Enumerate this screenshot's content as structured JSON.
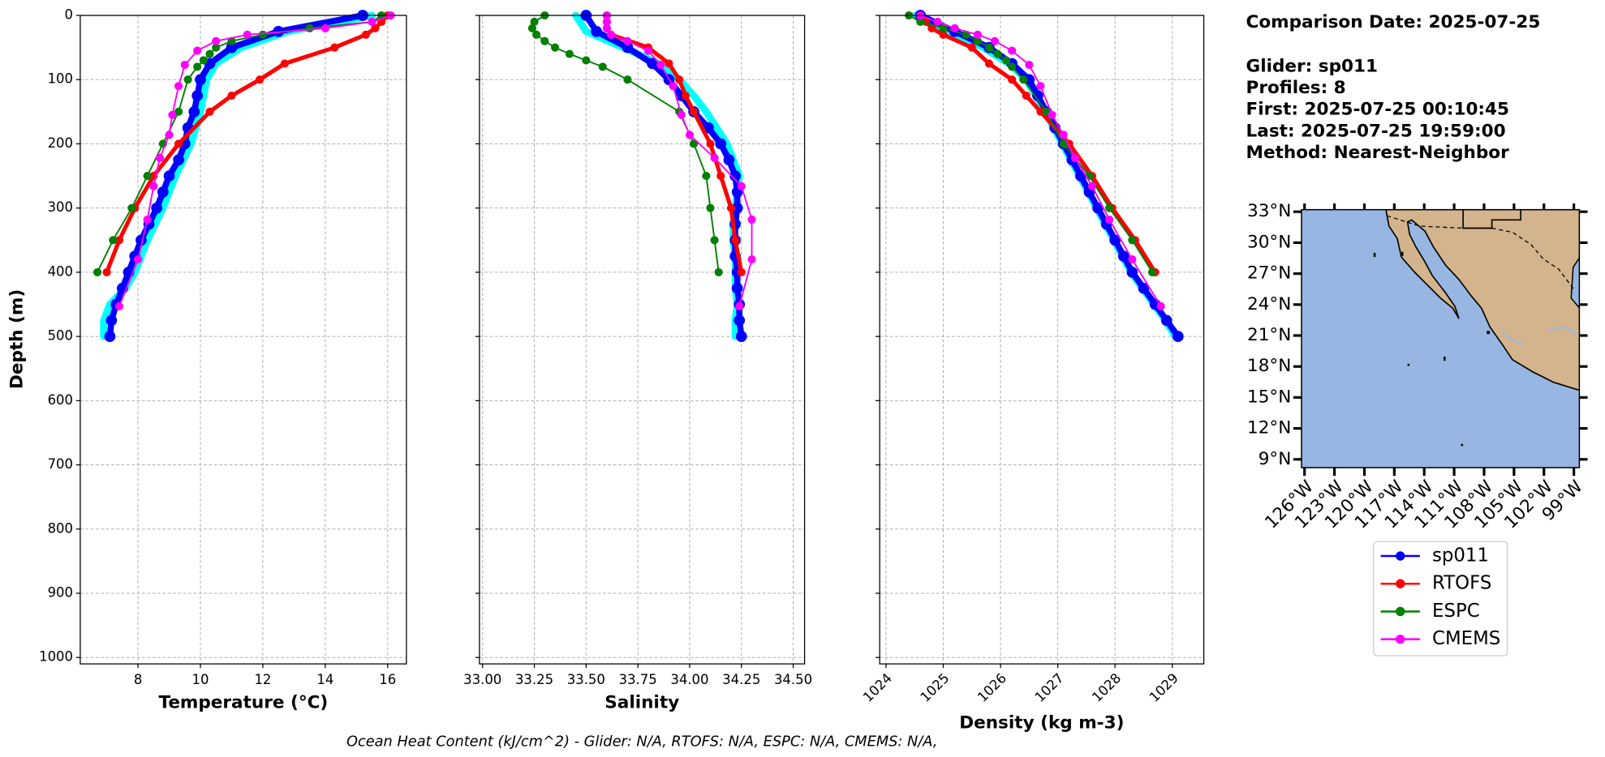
{
  "info": {
    "title": "Comparison Date: 2025-07-25",
    "lines": [
      "Glider: sp011",
      "Profiles: 8",
      "First: 2025-07-25 00:10:45",
      "Last: 2025-07-25 19:59:00",
      "Method: Nearest-Neighbor"
    ]
  },
  "footer": "Ocean Heat Content (kJ/cm^2) - Glider: N/A,  RTOFS: N/A,  ESPC: N/A,  CMEMS: N/A,",
  "chart_data": [
    {
      "type": "line",
      "xlabel": "Temperature (°C)",
      "ylabel": "Depth (m)",
      "xlim": [
        6.15,
        16.6
      ],
      "xticks": [
        8,
        10,
        12,
        14,
        16
      ],
      "ylim": [
        1010,
        0
      ],
      "yticks": [
        0,
        100,
        200,
        300,
        400,
        500,
        600,
        700,
        800,
        900,
        1000
      ],
      "grid": true,
      "series": [
        {
          "color": "#00ffff",
          "linewidth": 7,
          "values": [
            0,
            25,
            50,
            75,
            100,
            125,
            150,
            175,
            200,
            225,
            250,
            275,
            300,
            325,
            350,
            375,
            400,
            425,
            450,
            475,
            500
          ],
          "x": [
            15.5,
            12.8,
            11.3,
            10.5,
            10.2,
            10.1,
            10.0,
            9.85,
            9.7,
            9.45,
            9.2,
            9.0,
            8.8,
            8.55,
            8.3,
            8.1,
            7.9,
            7.6,
            7.1,
            6.9,
            6.9
          ]
        },
        {
          "name": "sp011",
          "color": "#0000ff",
          "linewidth": 6,
          "values": [
            0,
            25,
            50,
            75,
            100,
            125,
            150,
            175,
            200,
            225,
            250,
            275,
            300,
            325,
            350,
            375,
            400,
            425,
            450,
            475,
            500
          ],
          "x": [
            15.2,
            12.5,
            11.0,
            10.3,
            10.0,
            9.9,
            9.8,
            9.6,
            9.5,
            9.3,
            9.0,
            8.8,
            8.6,
            8.35,
            8.1,
            7.9,
            7.7,
            7.5,
            7.3,
            7.15,
            7.1
          ]
        },
        {
          "name": "RTOFS",
          "color": "#ff0000",
          "linewidth": 4,
          "values": [
            0,
            10,
            20,
            30,
            50,
            75,
            100,
            125,
            150,
            200,
            250,
            300,
            350,
            400
          ],
          "x": [
            16.0,
            15.8,
            15.6,
            15.3,
            14.3,
            12.7,
            11.9,
            11.0,
            10.3,
            9.3,
            8.5,
            7.9,
            7.4,
            7.0
          ]
        },
        {
          "name": "ESPC",
          "color": "#008000",
          "linewidth": 1.5,
          "values": [
            0,
            10,
            20,
            30,
            40,
            50,
            60,
            70,
            80,
            100,
            150,
            200,
            250,
            300,
            350,
            400
          ],
          "x": [
            15.8,
            15.5,
            13.5,
            12,
            11,
            10.5,
            10.3,
            10.1,
            9.9,
            9.6,
            9.3,
            8.8,
            8.3,
            7.8,
            7.2,
            6.7
          ]
        },
        {
          "name": "CMEMS",
          "color": "#ff00ff",
          "linewidth": 1.5,
          "values": [
            0,
            10,
            20,
            30,
            40,
            55,
            77,
            110,
            155,
            186,
            222,
            266,
            318,
            380,
            453
          ],
          "x": [
            16.1,
            15.5,
            14,
            11.5,
            10.5,
            9.9,
            9.5,
            9.3,
            9.1,
            9.0,
            8.7,
            8.5,
            8.3,
            8.0,
            7.4
          ]
        }
      ]
    },
    {
      "type": "line",
      "xlabel": "Salinity",
      "xlim": [
        32.985,
        34.555
      ],
      "xticks": [
        {
          "value": 33,
          "label": "33.00"
        },
        33.25,
        {
          "value": 33.5,
          "label": "33.50"
        },
        33.75,
        {
          "value": 34,
          "label": "34.00"
        },
        34.25,
        {
          "value": 34.5,
          "label": "34.50"
        }
      ],
      "grid": true,
      "series": [
        {
          "color": "#00ffff",
          "linewidth": 7,
          "values": [
            0,
            25,
            50,
            75,
            100,
            125,
            150,
            175,
            200,
            225,
            250,
            275,
            300,
            325,
            350,
            375,
            400,
            425,
            450,
            475,
            500
          ],
          "x": [
            33.45,
            33.5,
            33.68,
            33.85,
            33.95,
            34.02,
            34.08,
            34.13,
            34.18,
            34.21,
            34.24,
            34.23,
            34.22,
            34.21,
            34.21,
            34.22,
            34.22,
            34.22,
            34.23,
            34.22,
            34.22
          ]
        },
        {
          "name": "sp011",
          "color": "#0000ff",
          "linewidth": 6,
          "values": [
            0,
            25,
            50,
            75,
            100,
            125,
            150,
            175,
            200,
            225,
            250,
            275,
            300,
            325,
            350,
            375,
            400,
            425,
            450,
            475,
            500
          ],
          "x": [
            33.5,
            33.55,
            33.7,
            33.82,
            33.9,
            33.96,
            34.02,
            34.09,
            34.15,
            34.19,
            34.22,
            34.23,
            34.23,
            34.22,
            34.22,
            34.22,
            34.23,
            34.23,
            34.24,
            34.24,
            34.25
          ]
        },
        {
          "name": "RTOFS",
          "color": "#ff0000",
          "linewidth": 4,
          "values": [
            0,
            10,
            20,
            30,
            50,
            75,
            100,
            125,
            150,
            200,
            250,
            300,
            350,
            400
          ],
          "x": [
            33.6,
            33.6,
            33.6,
            33.62,
            33.8,
            33.9,
            33.95,
            33.98,
            34.02,
            34.1,
            34.15,
            34.2,
            34.22,
            34.25
          ]
        },
        {
          "name": "ESPC",
          "color": "#008000",
          "linewidth": 1.5,
          "values": [
            0,
            10,
            20,
            30,
            40,
            50,
            60,
            70,
            80,
            100,
            150,
            200,
            250,
            300,
            350,
            400
          ],
          "x": [
            33.3,
            33.25,
            33.24,
            33.26,
            33.3,
            33.35,
            33.42,
            33.5,
            33.58,
            33.7,
            33.95,
            34.02,
            34.08,
            34.1,
            34.12,
            34.14
          ]
        },
        {
          "name": "CMEMS",
          "color": "#ff00ff",
          "linewidth": 1.5,
          "values": [
            0,
            10,
            20,
            30,
            40,
            55,
            77,
            110,
            155,
            186,
            222,
            266,
            318,
            380,
            453
          ],
          "x": [
            33.6,
            33.6,
            33.6,
            33.62,
            33.7,
            33.8,
            33.86,
            33.92,
            33.96,
            34.0,
            34.12,
            34.25,
            34.3,
            34.3,
            34.24
          ]
        }
      ]
    },
    {
      "type": "line",
      "xlabel": "Density (kg m-3)",
      "xlim": [
        1023.89,
        1029.55
      ],
      "xticks": [
        1024,
        1025,
        1026,
        1027,
        1028,
        1029
      ],
      "xtick_rotation": 45,
      "grid": true,
      "series": [
        {
          "color": "#00ffff",
          "linewidth": 7,
          "values": [
            0,
            25,
            50,
            75,
            100,
            125,
            150,
            175,
            200,
            225,
            250,
            275,
            300,
            325,
            350,
            375,
            400,
            425,
            450,
            475,
            500
          ],
          "x": [
            1024.5,
            1025.1,
            1025.7,
            1026.15,
            1026.45,
            1026.62,
            1026.78,
            1026.93,
            1027.08,
            1027.23,
            1027.38,
            1027.53,
            1027.68,
            1027.83,
            1027.98,
            1028.13,
            1028.28,
            1028.48,
            1028.68,
            1028.88,
            1029.05
          ]
        },
        {
          "name": "sp011",
          "color": "#0000ff",
          "linewidth": 6,
          "values": [
            0,
            25,
            50,
            75,
            100,
            125,
            150,
            175,
            200,
            225,
            250,
            275,
            300,
            325,
            350,
            375,
            400,
            425,
            450,
            475,
            500
          ],
          "x": [
            1024.6,
            1025.2,
            1025.8,
            1026.2,
            1026.5,
            1026.65,
            1026.8,
            1026.95,
            1027.1,
            1027.25,
            1027.4,
            1027.55,
            1027.7,
            1027.85,
            1028.0,
            1028.15,
            1028.3,
            1028.5,
            1028.7,
            1028.9,
            1029.1
          ]
        },
        {
          "name": "RTOFS",
          "color": "#ff0000",
          "linewidth": 4,
          "values": [
            0,
            10,
            20,
            30,
            50,
            75,
            100,
            125,
            150,
            200,
            250,
            300,
            350,
            400
          ],
          "x": [
            1024.6,
            1024.7,
            1024.8,
            1025.0,
            1025.5,
            1025.8,
            1026.2,
            1026.45,
            1026.7,
            1027.2,
            1027.6,
            1027.95,
            1028.35,
            1028.7
          ]
        },
        {
          "name": "ESPC",
          "color": "#008000",
          "linewidth": 1.5,
          "values": [
            0,
            10,
            20,
            30,
            40,
            50,
            60,
            70,
            80,
            100,
            150,
            200,
            250,
            300,
            350,
            400
          ],
          "x": [
            1024.4,
            1024.6,
            1025.0,
            1025.4,
            1025.6,
            1025.8,
            1025.95,
            1026.1,
            1026.2,
            1026.4,
            1026.8,
            1027.1,
            1027.55,
            1027.9,
            1028.3,
            1028.65
          ]
        },
        {
          "name": "CMEMS",
          "color": "#ff00ff",
          "linewidth": 1.5,
          "values": [
            0,
            10,
            20,
            30,
            40,
            55,
            77,
            110,
            155,
            186,
            222,
            266,
            318,
            380,
            453
          ],
          "x": [
            1024.6,
            1024.9,
            1025.2,
            1025.6,
            1025.9,
            1026.2,
            1026.5,
            1026.7,
            1026.9,
            1027.1,
            1027.3,
            1027.6,
            1027.9,
            1028.3,
            1028.8
          ]
        }
      ]
    },
    {
      "type": "map",
      "ocean": "#97b6e1",
      "land": "#d3b48c",
      "xlim": [
        -126.3,
        -98.45
      ],
      "ylim": [
        8.2,
        33.2
      ],
      "xticks": [
        {
          "value": -126,
          "label": "126°W"
        },
        {
          "value": -123,
          "label": "123°W"
        },
        {
          "value": -120,
          "label": "120°W"
        },
        {
          "value": -117,
          "label": "117°W"
        },
        {
          "value": -114,
          "label": "114°W"
        },
        {
          "value": -111,
          "label": "111°W"
        },
        {
          "value": -108,
          "label": "108°W"
        },
        {
          "value": -105,
          "label": "105°W"
        },
        {
          "value": -102,
          "label": "102°W"
        },
        {
          "value": -99,
          "label": "99°W"
        }
      ],
      "yticks": [
        {
          "value": 33,
          "label": "33°N"
        },
        {
          "value": 30,
          "label": "30°N"
        },
        {
          "value": 27,
          "label": "27°N"
        },
        {
          "value": 24,
          "label": "24°N"
        },
        {
          "value": 21,
          "label": "21°N"
        },
        {
          "value": 18,
          "label": "18°N"
        },
        {
          "value": 15,
          "label": "15°N"
        },
        {
          "value": 12,
          "label": "12°N"
        },
        {
          "value": 9,
          "label": "9°N"
        }
      ]
    }
  ]
}
